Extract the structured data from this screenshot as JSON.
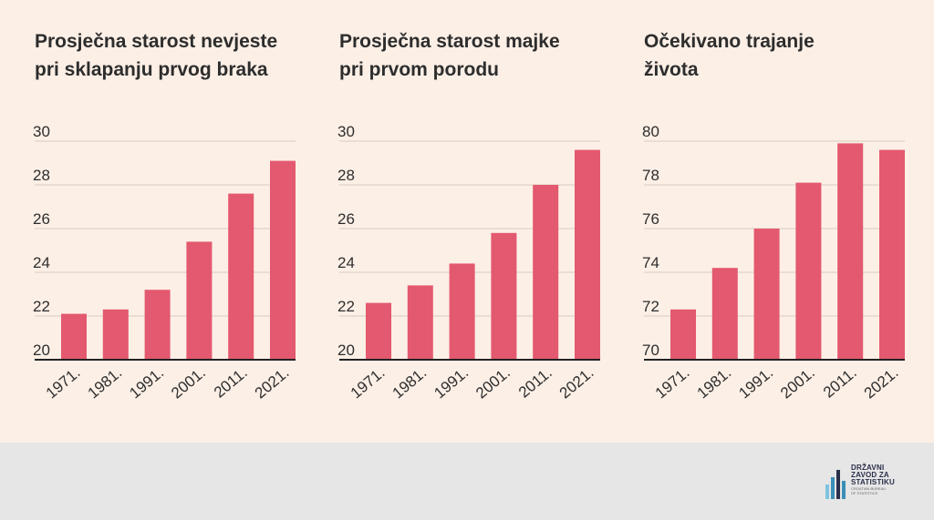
{
  "chart_data": [
    {
      "type": "bar",
      "title_lines": [
        "Prosječna starost nevjeste",
        "pri sklapanju prvog braka"
      ],
      "categories": [
        "1971.",
        "1981.",
        "1991.",
        "2001.",
        "2011.",
        "2021."
      ],
      "values": [
        22.1,
        22.3,
        23.2,
        25.4,
        27.6,
        29.1
      ],
      "ylim": [
        20,
        30
      ],
      "yticks": [
        20,
        22,
        24,
        26,
        28,
        30
      ],
      "grid": true,
      "color": "#e3596f"
    },
    {
      "type": "bar",
      "title_lines": [
        "Prosječna starost majke",
        "pri prvom porodu"
      ],
      "categories": [
        "1971.",
        "1981.",
        "1991.",
        "2001.",
        "2011.",
        "2021."
      ],
      "values": [
        22.6,
        23.4,
        24.4,
        25.8,
        28.0,
        29.6
      ],
      "ylim": [
        20,
        30
      ],
      "yticks": [
        20,
        22,
        24,
        26,
        28,
        30
      ],
      "grid": true,
      "color": "#e3596f"
    },
    {
      "type": "bar",
      "title_lines": [
        "Očekivano trajanje",
        "života"
      ],
      "categories": [
        "1971.",
        "1981.",
        "1991.",
        "2001.",
        "2011.",
        "2021."
      ],
      "values": [
        72.3,
        74.2,
        76.0,
        78.1,
        79.9,
        79.6
      ],
      "ylim": [
        70,
        80
      ],
      "yticks": [
        70,
        72,
        74,
        76,
        78,
        80
      ],
      "grid": true,
      "color": "#e3596f"
    }
  ],
  "logo": {
    "lines": [
      "DRŽAVNI",
      "ZAVOD ZA",
      "STATISTIKU"
    ],
    "sub": [
      "CROATIAN BUREAU",
      "OF STATISTICS"
    ],
    "colors": [
      "#2a2f4a",
      "#3a8fb7",
      "#7fc4e0"
    ]
  }
}
